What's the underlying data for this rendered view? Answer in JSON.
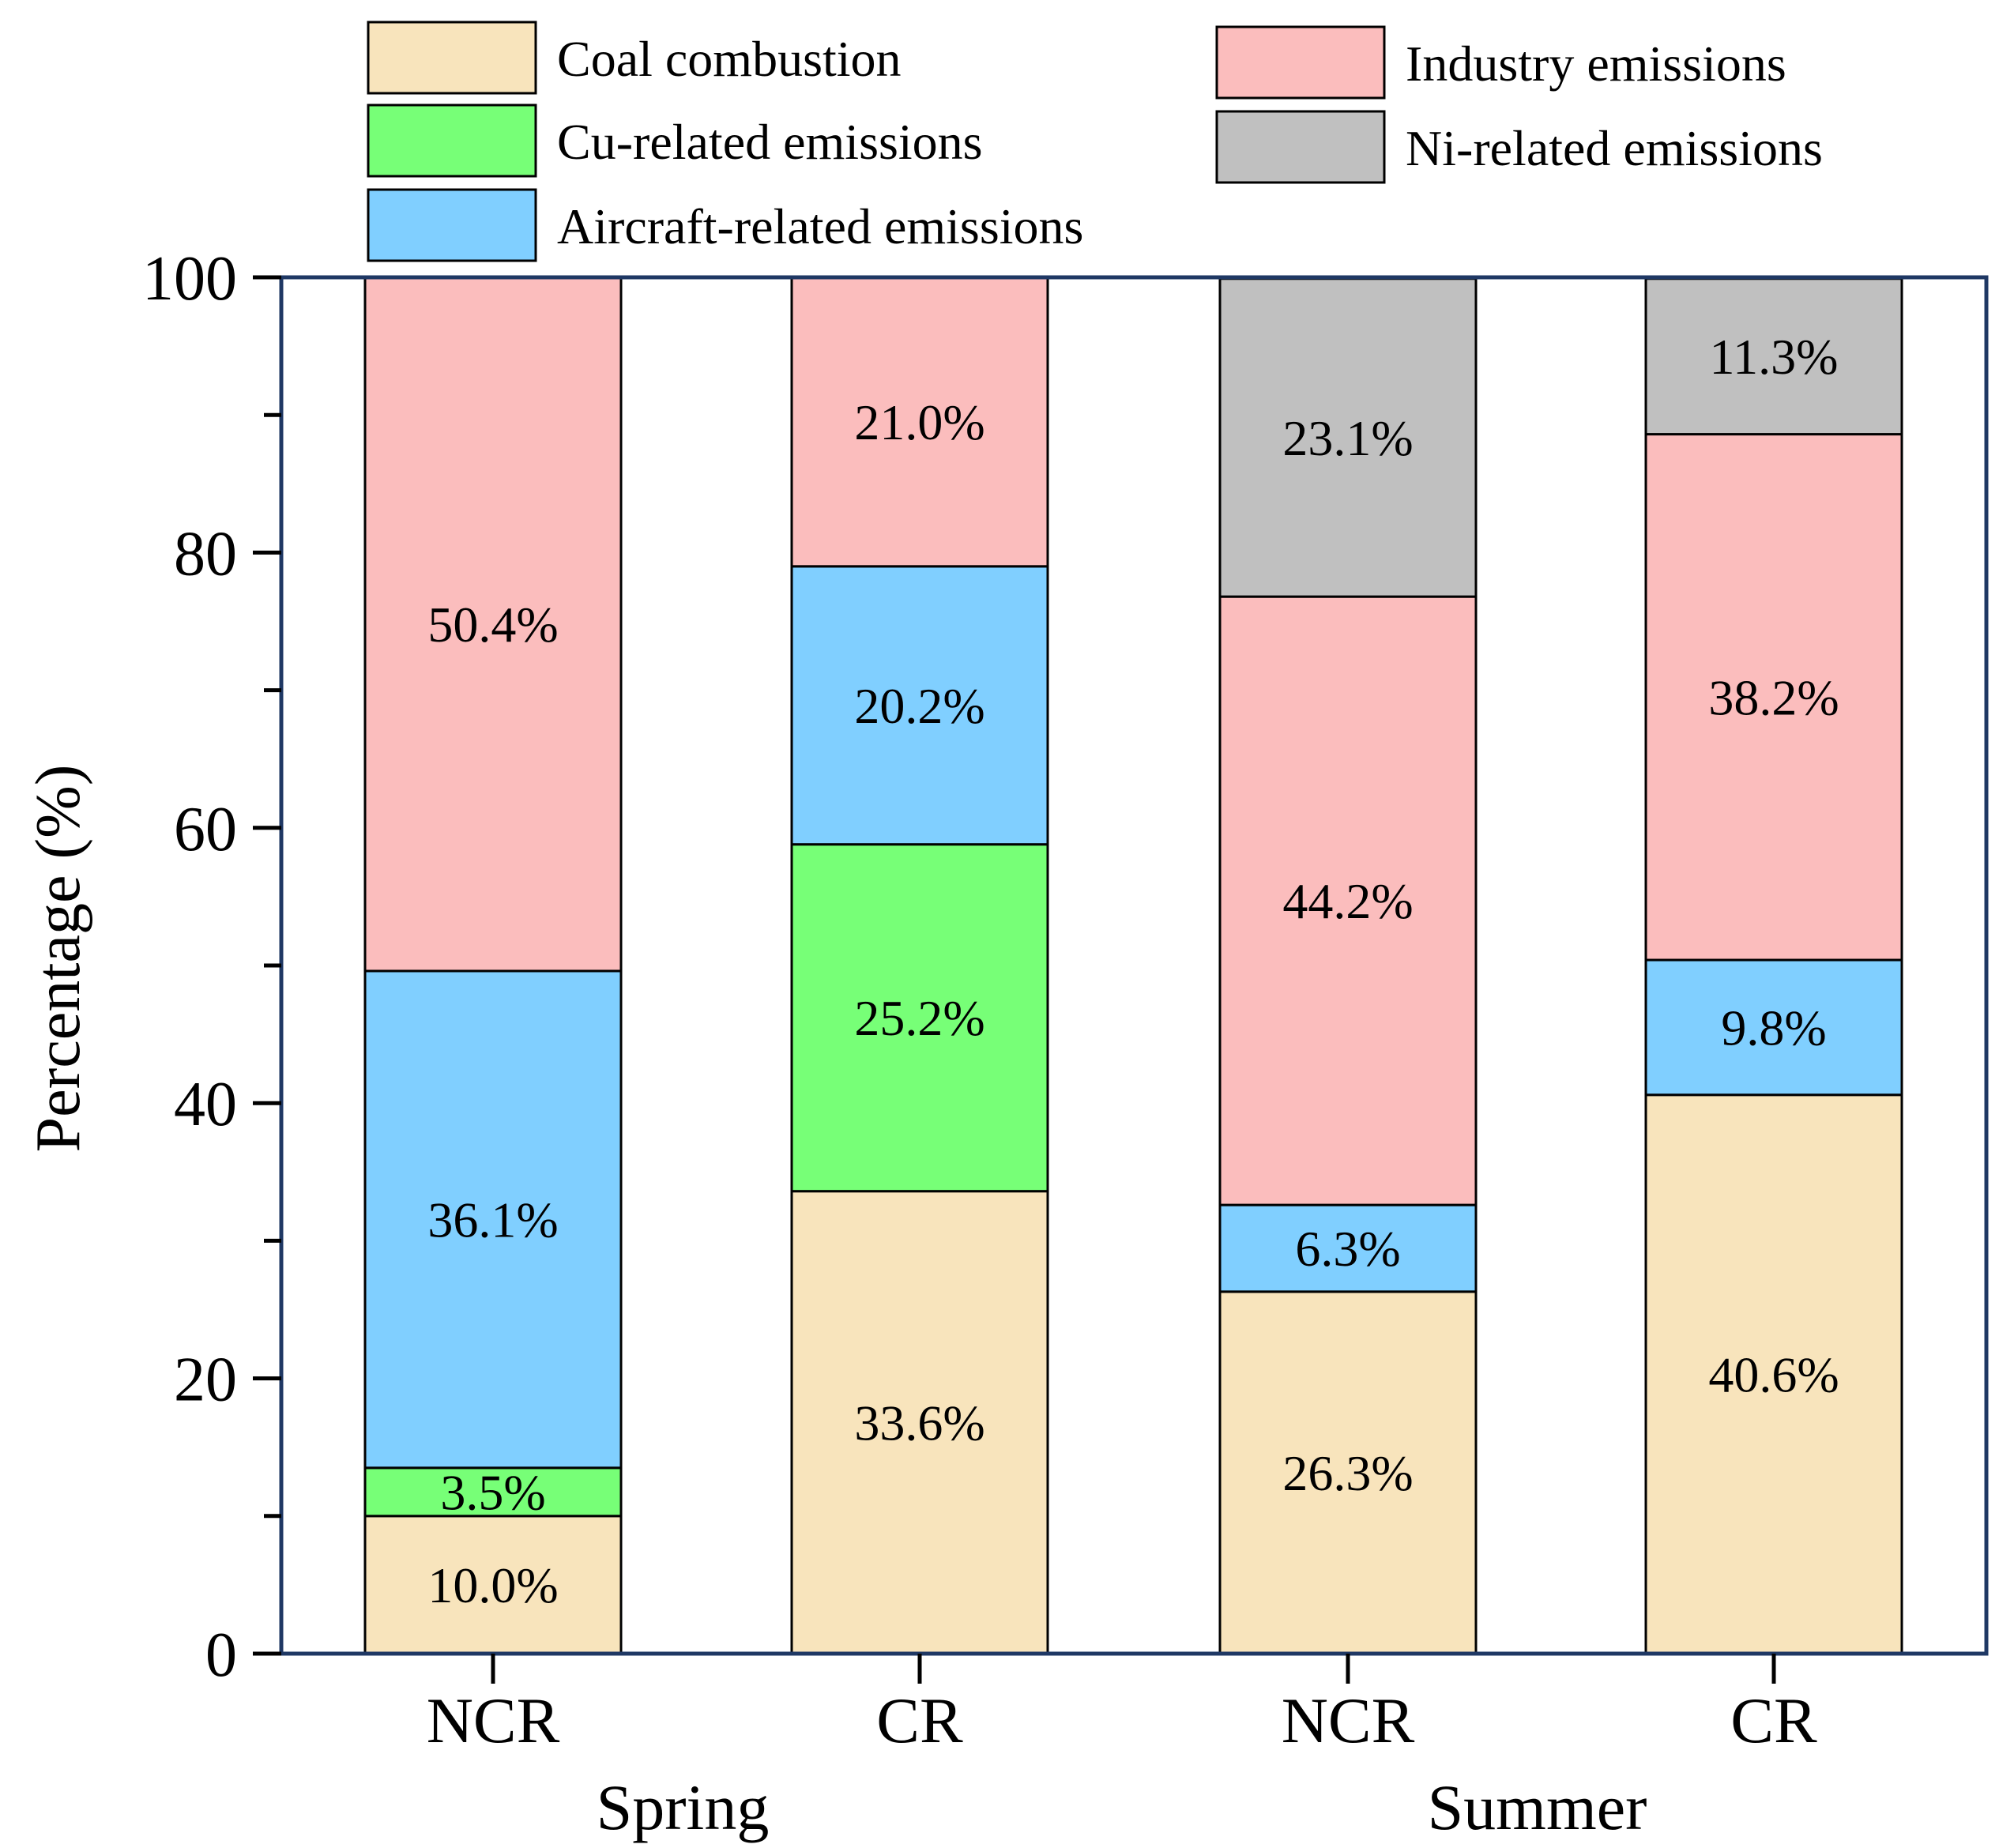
{
  "chart_data": {
    "type": "bar",
    "stacked": true,
    "title": "",
    "xlabel": "",
    "ylabel": "Percentage (%)",
    "ylim": [
      0,
      100
    ],
    "yticks": [
      "0",
      "20",
      "40",
      "60",
      "80",
      "100"
    ],
    "grid": false,
    "legend_position": "top",
    "groups": [
      {
        "name": "Spring",
        "categories": [
          "NCR",
          "CR"
        ]
      },
      {
        "name": "Summer",
        "categories": [
          "NCR",
          "CR"
        ]
      }
    ],
    "categories": [
      "NCR",
      "CR",
      "NCR",
      "CR"
    ],
    "legend": [
      {
        "name": "Coal combustion",
        "color": "#F8E4BC"
      },
      {
        "name": "Cu-related emissions",
        "color": "#77FF77"
      },
      {
        "name": "Aircraft-related emissions",
        "color": "#80CFFF"
      },
      {
        "name": "Industry emissions",
        "color": "#FBBDBD"
      },
      {
        "name": "Ni-related emissions",
        "color": "#C0C0C0"
      }
    ],
    "bars": [
      {
        "category": "NCR",
        "group": "Spring",
        "segments": [
          {
            "series": "Coal combustion",
            "value": 10.0,
            "label": "10.0%"
          },
          {
            "series": "Cu-related emissions",
            "value": 3.5,
            "label": "3.5%"
          },
          {
            "series": "Aircraft-related emissions",
            "value": 36.1,
            "label": "36.1%"
          },
          {
            "series": "Industry emissions",
            "value": 50.4,
            "label": "50.4%"
          }
        ]
      },
      {
        "category": "CR",
        "group": "Spring",
        "segments": [
          {
            "series": "Coal combustion",
            "value": 33.6,
            "label": "33.6%"
          },
          {
            "series": "Cu-related emissions",
            "value": 25.2,
            "label": "25.2%"
          },
          {
            "series": "Aircraft-related emissions",
            "value": 20.2,
            "label": "20.2%"
          },
          {
            "series": "Industry emissions",
            "value": 21.0,
            "label": "21.0%"
          }
        ]
      },
      {
        "category": "NCR",
        "group": "Summer",
        "segments": [
          {
            "series": "Coal combustion",
            "value": 26.3,
            "label": "26.3%"
          },
          {
            "series": "Aircraft-related emissions",
            "value": 6.3,
            "label": "6.3%"
          },
          {
            "series": "Industry emissions",
            "value": 44.2,
            "label": "44.2%"
          },
          {
            "series": "Ni-related emissions",
            "value": 23.1,
            "label": "23.1%"
          }
        ]
      },
      {
        "category": "CR",
        "group": "Summer",
        "segments": [
          {
            "series": "Coal combustion",
            "value": 40.6,
            "label": "40.6%"
          },
          {
            "series": "Aircraft-related emissions",
            "value": 9.8,
            "label": "9.8%"
          },
          {
            "series": "Industry emissions",
            "value": 38.2,
            "label": "38.2%"
          },
          {
            "series": "Ni-related emissions",
            "value": 11.3,
            "label": "11.3%"
          }
        ]
      }
    ]
  },
  "colors": {
    "axis_frame": "#1F3864",
    "bar_stroke": "#000000"
  }
}
